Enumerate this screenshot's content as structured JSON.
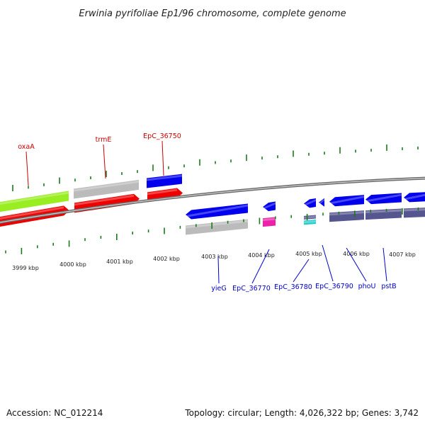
{
  "title": "Erwinia pyrifoliae Ep1/96 chromosome, complete genome",
  "footer": {
    "accession": "Accession: NC_012214",
    "summary": "Topology: circular; Length: 4,026,322 bp; Genes: 3,742"
  },
  "colors": {
    "tick": "#1a7a1a",
    "backbone": "#888888",
    "label_forward": "#cc0000",
    "label_reverse": "#0000cc",
    "cds_red": "#ee0000",
    "gene_blue": "#0000ee",
    "gene_gray": "#bbbbbb",
    "gene_green": "#99ee22",
    "gene_slate": "#55558f",
    "gene_magenta": "#ee22aa",
    "gene_cyan": "#22cccc"
  },
  "kbp_labels": [
    "3999 kbp",
    "4000 kbp",
    "4001 kbp",
    "4002 kbp",
    "4003 kbp",
    "4004 kbp",
    "4005 kbp",
    "4006 kbp",
    "4007 kbp"
  ],
  "forward_labels": [
    {
      "name": "oxaA",
      "color": "label_forward"
    },
    {
      "name": "trmE",
      "color": "label_forward"
    },
    {
      "name": "EpC_36750",
      "color": "label_forward"
    }
  ],
  "reverse_labels": [
    {
      "name": "yieG",
      "color": "label_reverse"
    },
    {
      "name": "EpC_36770",
      "color": "label_reverse"
    },
    {
      "name": "EpC_36780",
      "color": "label_reverse"
    },
    {
      "name": "EpC_36790",
      "color": "label_reverse"
    },
    {
      "name": "phoU",
      "color": "label_reverse"
    },
    {
      "name": "pstB",
      "color": "label_reverse"
    }
  ]
}
